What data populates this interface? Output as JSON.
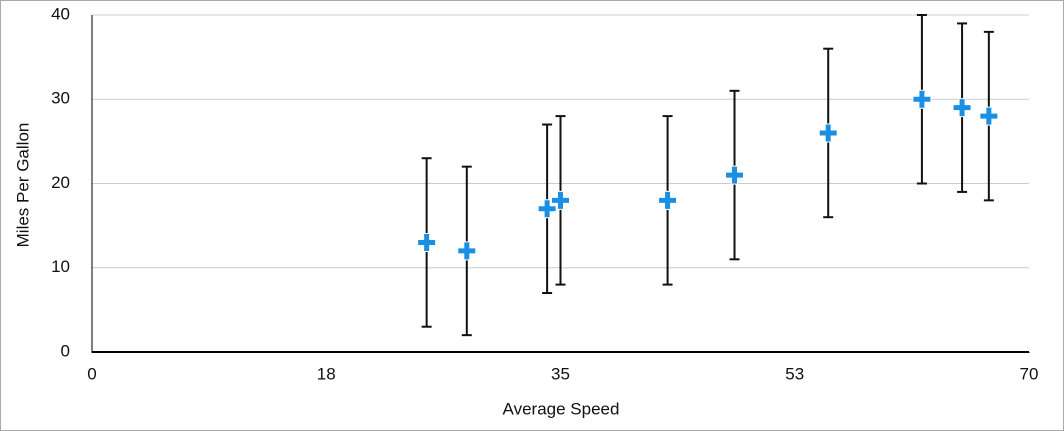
{
  "chart_data": {
    "type": "scatter",
    "x_label": "Average Speed",
    "y_label": "Miles Per Gallon",
    "x": [
      25,
      28,
      34,
      35,
      43,
      48,
      55,
      62,
      65,
      67
    ],
    "values": [
      13,
      12,
      17,
      18,
      18,
      21,
      26,
      30,
      29,
      28
    ],
    "errors": [
      10,
      10,
      10,
      10,
      10,
      10,
      10,
      10,
      10,
      10
    ],
    "color": "#1a8fe3",
    "xlim": [
      0,
      70
    ],
    "xticks": [
      0,
      {
        "value": 17.5,
        "label": "18"
      },
      35,
      {
        "value": 52.5,
        "label": "53"
      },
      70
    ],
    "ylim": [
      0,
      40
    ],
    "yticks": [
      0,
      10,
      20,
      30,
      40
    ],
    "grid": true
  }
}
